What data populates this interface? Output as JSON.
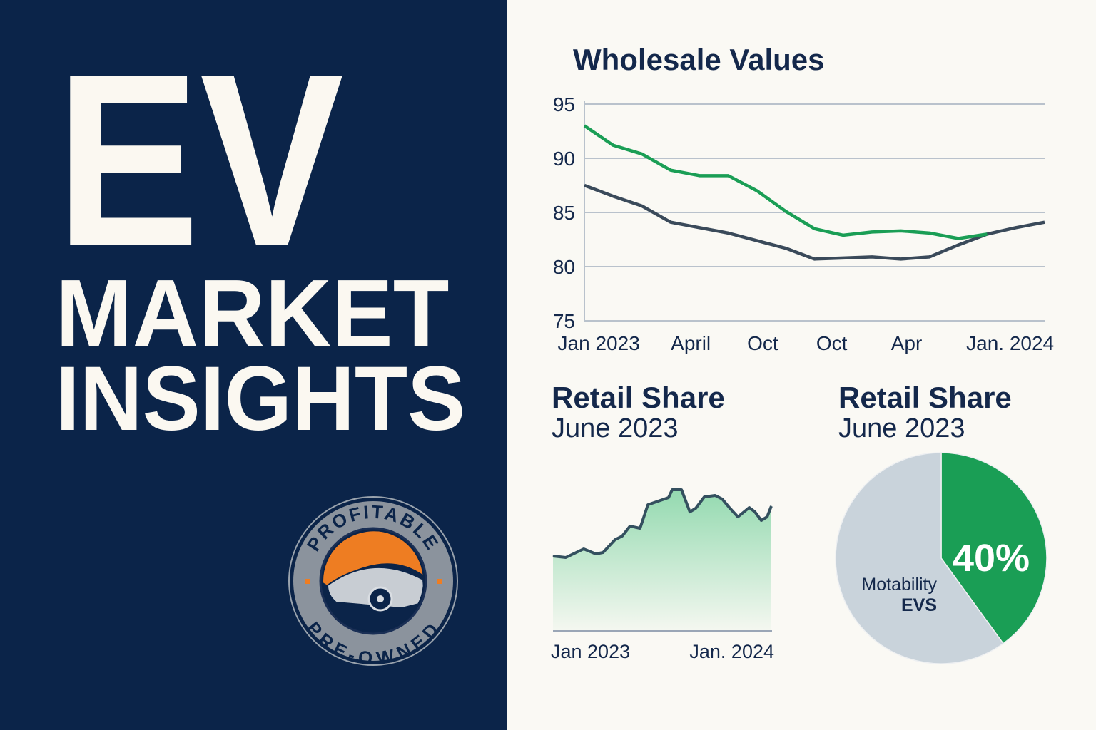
{
  "headline": {
    "line1": "EV",
    "line2": "MARKET",
    "line3": "INSIGHTS"
  },
  "logo": {
    "top_text": "PROFITABLE",
    "bottom_text": "PRE-OWNED"
  },
  "colors": {
    "navy": "#0b2449",
    "green": "#1a9e55",
    "slate": "#3a4a5a",
    "pie_gray": "#c9d3db",
    "orange": "#ee7d22",
    "background": "#faf9f4"
  },
  "chart_data": [
    {
      "type": "line",
      "title": "Wholesale Values",
      "ylim": [
        75,
        95
      ],
      "yticks": [
        "95",
        "90",
        "85",
        "80",
        "75"
      ],
      "ytick_values": [
        95,
        90,
        85,
        80,
        75
      ],
      "xlim": [
        0,
        16
      ],
      "xticks": [
        {
          "label": "Jan 2023",
          "at": 0.5
        },
        {
          "label": "April",
          "at": 3.7
        },
        {
          "label": "Oct",
          "at": 6.2
        },
        {
          "label": "Oct",
          "at": 8.6
        },
        {
          "label": "Apr",
          "at": 11.2
        },
        {
          "label": "Jan.  2024",
          "at": 14.8
        }
      ],
      "grid": true,
      "series": [
        {
          "color": "#1a9e55",
          "x": [
            0,
            1,
            2,
            3,
            4,
            5,
            6,
            7,
            8,
            9,
            10,
            11,
            12,
            13,
            14
          ],
          "values": [
            93.0,
            91.2,
            90.4,
            88.9,
            88.4,
            88.4,
            87.0,
            85.1,
            83.5,
            82.9,
            83.2,
            83.3,
            83.1,
            82.6,
            83.0
          ]
        },
        {
          "color": "#3a4a5a",
          "x": [
            0,
            1,
            2,
            3,
            4,
            5,
            6,
            7,
            8,
            9,
            10,
            11,
            12,
            13,
            14,
            15,
            16
          ],
          "values": [
            87.5,
            86.5,
            85.6,
            84.1,
            83.6,
            83.1,
            82.4,
            81.7,
            80.7,
            80.8,
            80.9,
            80.7,
            80.9,
            82.0,
            83.0,
            83.6,
            84.1
          ]
        }
      ]
    },
    {
      "type": "area",
      "title": "Retail Share",
      "subtitle": "June 2023",
      "xticks": [
        "Jan 2023",
        "Jan. 2024"
      ],
      "xlim": [
        0,
        12
      ],
      "ylim": [
        0,
        210
      ],
      "x": [
        0,
        0.7,
        1.68,
        2.35,
        2.74,
        3.4,
        3.79,
        4.22,
        4.77,
        5.2,
        6.33,
        6.53,
        7.04,
        7.5,
        7.82,
        8.29,
        8.88,
        9.27,
        9.66,
        10.13,
        10.75,
        11.06,
        11.41,
        11.73,
        11.96
      ],
      "values": [
        105,
        103,
        115,
        108,
        110,
        128,
        133,
        147,
        144,
        177,
        187,
        198,
        198,
        167,
        172,
        188,
        190,
        185,
        173,
        160,
        173,
        167,
        155,
        160,
        175
      ],
      "line_color": "#34505f",
      "fill_color": "#8ed8ac"
    },
    {
      "type": "pie",
      "title": "Retail Share",
      "subtitle": "June 2023",
      "slices": [
        {
          "label": "40%",
          "value": 40,
          "color": "#1a9e55"
        },
        {
          "label_line1": "Motability",
          "label_line2": "EVS",
          "value": 60,
          "color": "#c9d3db"
        }
      ]
    }
  ]
}
